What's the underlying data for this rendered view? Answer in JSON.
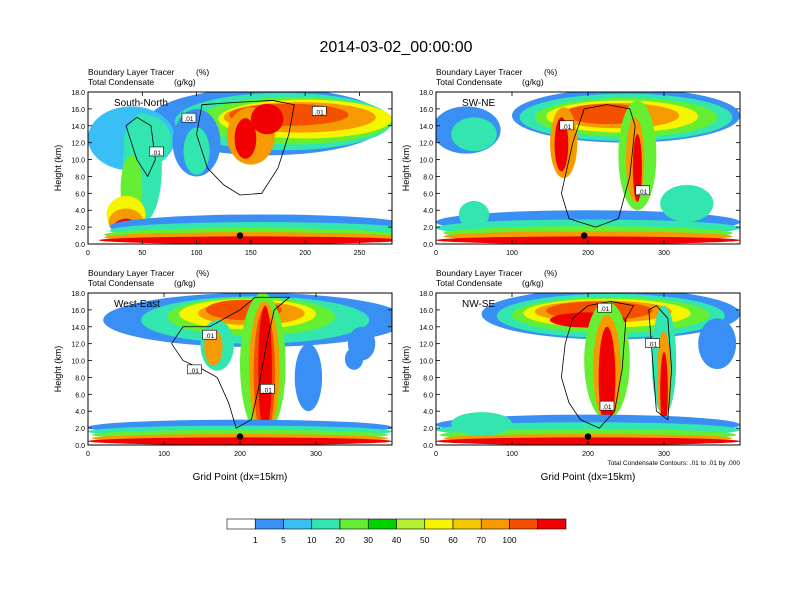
{
  "title": "2014-03-02_00:00:00",
  "chart_data": [
    {
      "type": "heatmap",
      "panel": "South-North",
      "label": "South-North",
      "title_line1": "Boundary Layer Tracer",
      "units_line1": "(%)",
      "title_line2": "Total Condensate",
      "units_line2": "(g/kg)",
      "ylabel": "Height (km)",
      "xlabel": "",
      "xlim": [
        0,
        280
      ],
      "ylim": [
        0,
        18
      ],
      "xticks": [
        "0",
        "50",
        "100",
        "150",
        "200",
        "250"
      ],
      "yticks": [
        "0.0",
        "2.0",
        "4.0",
        "6.0",
        "8.0",
        "10.0",
        "12.0",
        "14.0",
        "16.0",
        "18.0"
      ],
      "contour_labels": [
        {
          "text": ".01",
          "x": 93,
          "y": 14.9
        },
        {
          "text": ".01",
          "x": 63,
          "y": 10.9
        },
        {
          "text": ".01",
          "x": 213,
          "y": 15.7
        }
      ],
      "marker": {
        "x": 140,
        "y": 1.0
      }
    },
    {
      "type": "heatmap",
      "panel": "SW-NE",
      "label": "SW-NE",
      "title_line1": "Boundary Layer Tracer",
      "units_line1": "(%)",
      "title_line2": "Total Condensate",
      "units_line2": "(g/kg)",
      "ylabel": "Height (km)",
      "xlabel": "",
      "xlim": [
        0,
        400
      ],
      "ylim": [
        0,
        18
      ],
      "xticks": [
        "0",
        "100",
        "200",
        "300"
      ],
      "yticks": [
        "0.0",
        "2.0",
        "4.0",
        "6.0",
        "8.0",
        "10.0",
        "12.0",
        "14.0",
        "16.0",
        "18.0"
      ],
      "contour_labels": [
        {
          "text": ".01",
          "x": 172,
          "y": 14.0
        },
        {
          "text": ".01",
          "x": 272,
          "y": 6.3
        }
      ],
      "marker": {
        "x": 195,
        "y": 1.0
      }
    },
    {
      "type": "heatmap",
      "panel": "West-East",
      "label": "West-East",
      "title_line1": "Boundary Layer Tracer",
      "units_line1": "(%)",
      "title_line2": "Total Condensate",
      "units_line2": "(g/kg)",
      "ylabel": "Height (km)",
      "xlabel": "Grid Point (dx=15km)",
      "xlim": [
        0,
        400
      ],
      "ylim": [
        0,
        18
      ],
      "xticks": [
        "0",
        "100",
        "200",
        "300"
      ],
      "yticks": [
        "0.0",
        "2.0",
        "4.0",
        "6.0",
        "8.0",
        "10.0",
        "12.0",
        "14.0",
        "16.0",
        "18.0"
      ],
      "contour_labels": [
        {
          "text": ".01",
          "x": 160,
          "y": 13.0
        },
        {
          "text": ".01",
          "x": 140,
          "y": 8.9
        },
        {
          "text": ".01",
          "x": 236,
          "y": 6.6
        }
      ],
      "marker": {
        "x": 200,
        "y": 1.0
      }
    },
    {
      "type": "heatmap",
      "panel": "NW-SE",
      "label": "NW-SE",
      "title_line1": "Boundary Layer Tracer",
      "units_line1": "(%)",
      "title_line2": "Total Condensate",
      "units_line2": "(g/kg)",
      "ylabel": "Height (km)",
      "xlabel": "Grid Point (dx=15km)",
      "xlim": [
        0,
        400
      ],
      "ylim": [
        0,
        18
      ],
      "xticks": [
        "0",
        "100",
        "200",
        "300"
      ],
      "yticks": [
        "0.0",
        "2.0",
        "4.0",
        "6.0",
        "8.0",
        "10.0",
        "12.0",
        "14.0",
        "16.0",
        "18.0"
      ],
      "contour_labels": [
        {
          "text": ".01",
          "x": 222,
          "y": 16.2
        },
        {
          "text": ".01",
          "x": 285,
          "y": 12.0
        },
        {
          "text": ".01",
          "x": 225,
          "y": 4.6
        }
      ],
      "marker": {
        "x": 200,
        "y": 1.0
      },
      "footnote": "Total Condensate Contours: .01 to .01 by .000"
    }
  ],
  "colorbar": {
    "levels": [
      "1",
      "5",
      "10",
      "20",
      "30",
      "40",
      "50",
      "60",
      "70",
      "100"
    ],
    "colors": [
      "#ffffff",
      "#3a8ff5",
      "#39bff5",
      "#33e6b0",
      "#66ee33",
      "#00d200",
      "#b4f032",
      "#f5f500",
      "#f5c800",
      "#f59a00",
      "#f55000",
      "#f00000"
    ]
  },
  "colors": {
    "white": "#ffffff",
    "blue": "#3a8ff5",
    "lightblue": "#39bff5",
    "cyan": "#39e8f0",
    "teal": "#33e6b0",
    "lime": "#66ee33",
    "green": "#00d200",
    "ygreen": "#b4f032",
    "yellow": "#f5f500",
    "gold": "#f5c800",
    "orange": "#f59a00",
    "redorange": "#f55000",
    "red": "#f00000"
  }
}
